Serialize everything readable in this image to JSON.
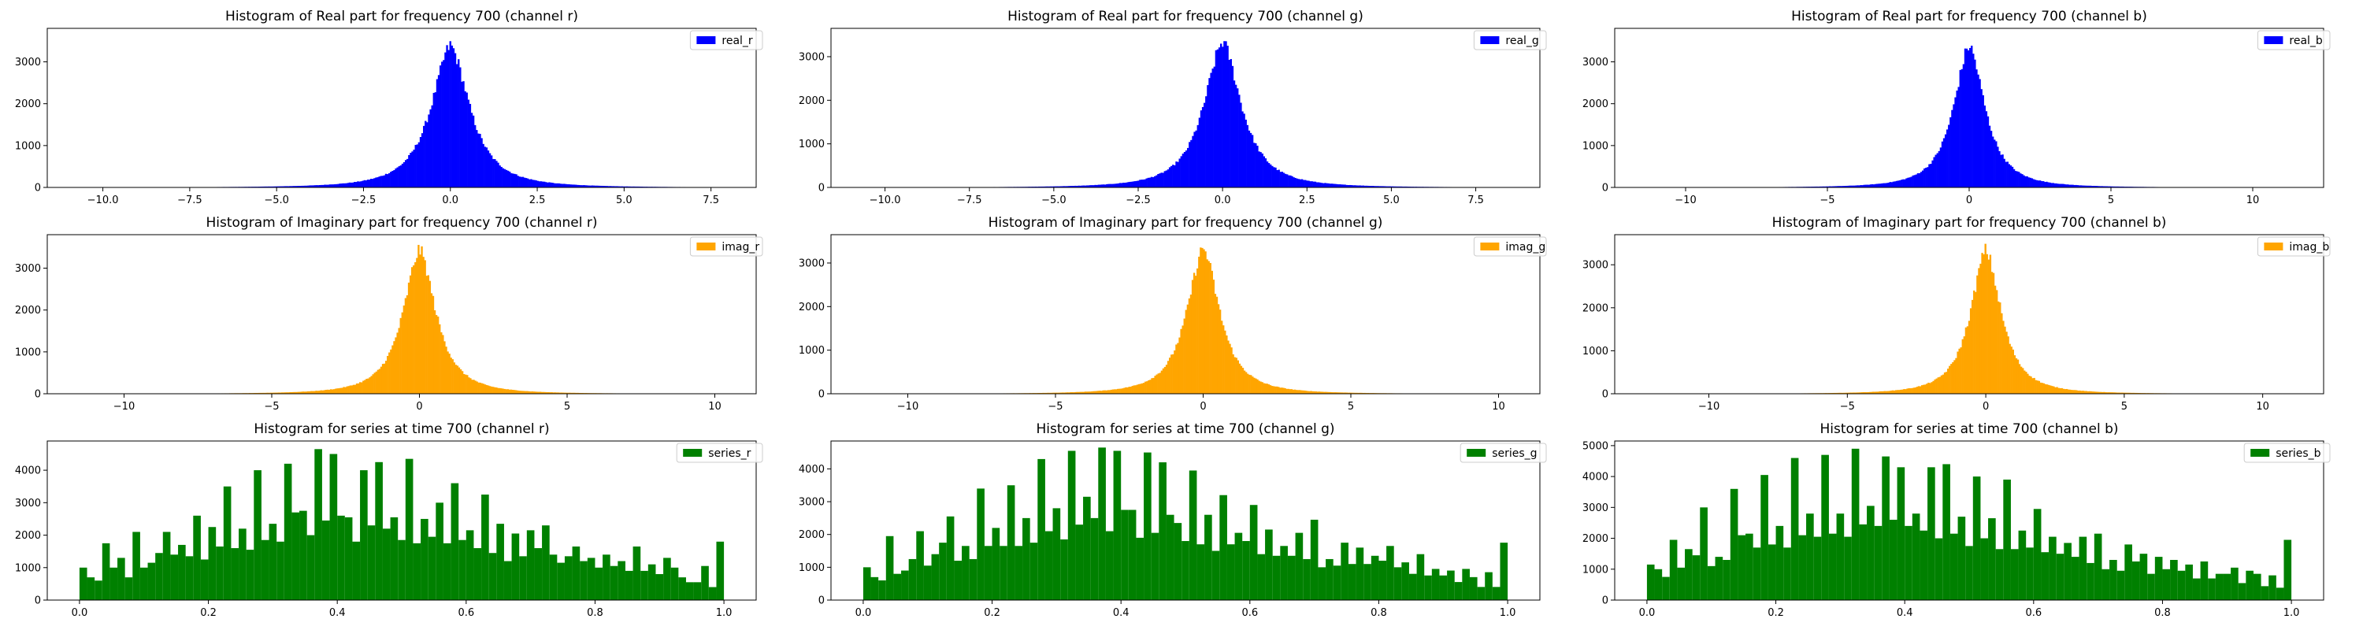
{
  "chart_data": [
    {
      "type": "bar",
      "title": "Histogram of Real part for frequency 700 (channel r)",
      "legend": "real_r",
      "color": "#0000ff",
      "xlim": [
        -11.6,
        8.8
      ],
      "ylim": [
        0,
        3800
      ],
      "xticks": [
        -10.0,
        -7.5,
        -5.0,
        -2.5,
        0.0,
        2.5,
        5.0,
        7.5
      ],
      "xtick_labels": [
        "−10.0",
        "−7.5",
        "−5.0",
        "−2.5",
        "0.0",
        "2.5",
        "5.0",
        "7.5"
      ],
      "yticks": [
        0,
        1000,
        2000,
        3000
      ],
      "distribution": {
        "kind": "peaked",
        "center": 0.0,
        "peak": 3400,
        "range": [
          -11,
          8
        ],
        "bins": 400,
        "noise": 0.05
      },
      "legend_position": "top-right"
    },
    {
      "type": "bar",
      "title": "Histogram of Real part for frequency 700 (channel g)",
      "legend": "real_g",
      "color": "#0000ff",
      "xlim": [
        -11.6,
        9.4
      ],
      "ylim": [
        0,
        3650
      ],
      "xticks": [
        -10.0,
        -7.5,
        -5.0,
        -2.5,
        0.0,
        2.5,
        5.0,
        7.5
      ],
      "xtick_labels": [
        "−10.0",
        "−7.5",
        "−5.0",
        "−2.5",
        "0.0",
        "2.5",
        "5.0",
        "7.5"
      ],
      "yticks": [
        0,
        1000,
        2000,
        3000
      ],
      "distribution": {
        "kind": "peaked",
        "center": 0.0,
        "peak": 3350,
        "range": [
          -11,
          8.6
        ],
        "bins": 400,
        "noise": 0.05
      },
      "legend_position": "top-right"
    },
    {
      "type": "bar",
      "title": "Histogram of Real part for frequency 700 (channel b)",
      "legend": "real_b",
      "color": "#0000ff",
      "xlim": [
        -12.5,
        12.5
      ],
      "ylim": [
        0,
        3800
      ],
      "xticks": [
        -10,
        -5,
        0,
        5,
        10
      ],
      "xtick_labels": [
        "−10",
        "−5",
        "0",
        "5",
        "10"
      ],
      "yticks": [
        0,
        1000,
        2000,
        3000
      ],
      "distribution": {
        "kind": "peaked",
        "center": 0.0,
        "peak": 3400,
        "range": [
          -11.5,
          11.5
        ],
        "bins": 400,
        "noise": 0.05
      },
      "legend_position": "top-right"
    },
    {
      "type": "bar",
      "title": "Histogram of Imaginary part for frequency 700 (channel r)",
      "legend": "imag_r",
      "color": "#ffa500",
      "xlim": [
        -12.6,
        11.4
      ],
      "ylim": [
        0,
        3800
      ],
      "xticks": [
        -10,
        -5,
        0,
        5,
        10
      ],
      "xtick_labels": [
        "−10",
        "−5",
        "0",
        "5",
        "10"
      ],
      "yticks": [
        0,
        1000,
        2000,
        3000
      ],
      "distribution": {
        "kind": "peaked",
        "center": 0.0,
        "peak": 3450,
        "range": [
          -11.5,
          10.5
        ],
        "bins": 400,
        "noise": 0.05
      },
      "legend_position": "top-right"
    },
    {
      "type": "bar",
      "title": "Histogram of Imaginary part for frequency 700 (channel g)",
      "legend": "imag_g",
      "color": "#ffa500",
      "xlim": [
        -12.6,
        11.4
      ],
      "ylim": [
        0,
        3650
      ],
      "xticks": [
        -10,
        -5,
        0,
        5,
        10
      ],
      "xtick_labels": [
        "−10",
        "−5",
        "0",
        "5",
        "10"
      ],
      "yticks": [
        0,
        1000,
        2000,
        3000
      ],
      "distribution": {
        "kind": "peaked",
        "center": 0.0,
        "peak": 3350,
        "range": [
          -11.5,
          10.5
        ],
        "bins": 400,
        "noise": 0.05
      },
      "legend_position": "top-right"
    },
    {
      "type": "bar",
      "title": "Histogram of Imaginary part for frequency 700 (channel b)",
      "legend": "imag_b",
      "color": "#ffa500",
      "xlim": [
        -13.4,
        12.2
      ],
      "ylim": [
        0,
        3700
      ],
      "xticks": [
        -10,
        -5,
        0,
        5,
        10
      ],
      "xtick_labels": [
        "−10",
        "−5",
        "0",
        "5",
        "10"
      ],
      "yticks": [
        0,
        1000,
        2000,
        3000
      ],
      "distribution": {
        "kind": "peaked",
        "center": 0.0,
        "peak": 3350,
        "range": [
          -12.5,
          11
        ],
        "bins": 400,
        "noise": 0.05
      },
      "legend_position": "top-right"
    },
    {
      "type": "bar",
      "title": "Histogram for series at time 700 (channel r)",
      "legend": "series_r",
      "color": "#008000",
      "xlim": [
        -0.05,
        1.05
      ],
      "ylim": [
        0,
        4900
      ],
      "xticks": [
        0.0,
        0.2,
        0.4,
        0.6,
        0.8,
        1.0
      ],
      "xtick_labels": [
        "0.0",
        "0.2",
        "0.4",
        "0.6",
        "0.8",
        "1.0"
      ],
      "yticks": [
        0,
        1000,
        2000,
        3000,
        4000
      ],
      "bin_range": [
        0,
        1
      ],
      "values": [
        1000,
        700,
        600,
        1750,
        1000,
        1300,
        700,
        2100,
        1000,
        1150,
        1450,
        2100,
        1400,
        1700,
        1350,
        2600,
        1250,
        2250,
        1650,
        3500,
        1600,
        2200,
        1550,
        4000,
        1850,
        2350,
        1800,
        4200,
        2700,
        2750,
        2000,
        4650,
        2450,
        4500,
        2600,
        2550,
        1800,
        4000,
        2300,
        4250,
        2200,
        2550,
        1850,
        4350,
        1750,
        2500,
        1950,
        3000,
        1750,
        3600,
        1850,
        2150,
        1600,
        3250,
        1450,
        2350,
        1200,
        2050,
        1350,
        2150,
        1600,
        2300,
        1400,
        1150,
        1350,
        1650,
        1200,
        1300,
        1000,
        1400,
        1050,
        1200,
        900,
        1650,
        900,
        1100,
        800,
        1300,
        1000,
        700,
        550,
        550,
        1050,
        400,
        1800
      ]
    },
    {
      "type": "bar",
      "title": "Histogram for series at time 700 (channel g)",
      "legend": "series_g",
      "color": "#008000",
      "xlim": [
        -0.05,
        1.05
      ],
      "ylim": [
        0,
        4850
      ],
      "xticks": [
        0.0,
        0.2,
        0.4,
        0.6,
        0.8,
        1.0
      ],
      "xtick_labels": [
        "0.0",
        "0.2",
        "0.4",
        "0.6",
        "0.8",
        "1.0"
      ],
      "yticks": [
        0,
        1000,
        2000,
        3000,
        4000
      ],
      "bin_range": [
        0,
        1
      ],
      "values": [
        1000,
        700,
        600,
        1950,
        800,
        900,
        1250,
        2100,
        1050,
        1400,
        1750,
        2550,
        1200,
        1650,
        1250,
        3400,
        1650,
        2200,
        1650,
        3500,
        1650,
        2500,
        1750,
        4300,
        2100,
        2800,
        1850,
        4550,
        2300,
        3150,
        2500,
        4650,
        2100,
        4550,
        2750,
        2750,
        1900,
        4500,
        2050,
        4200,
        2600,
        2350,
        1800,
        3950,
        1700,
        2600,
        1500,
        3200,
        1700,
        2050,
        1800,
        2900,
        1400,
        2150,
        1350,
        1650,
        1350,
        2050,
        1250,
        2450,
        1000,
        1250,
        1050,
        1750,
        1100,
        1600,
        1100,
        1350,
        1200,
        1650,
        1000,
        1150,
        800,
        1400,
        750,
        950,
        750,
        900,
        550,
        950,
        700,
        400,
        850,
        400,
        1750
      ]
    },
    {
      "type": "bar",
      "title": "Histogram for series at time 700 (channel b)",
      "legend": "series_b",
      "color": "#008000",
      "xlim": [
        -0.05,
        1.05
      ],
      "ylim": [
        0,
        5150
      ],
      "xticks": [
        0.0,
        0.2,
        0.4,
        0.6,
        0.8,
        1.0
      ],
      "xtick_labels": [
        "0.0",
        "0.2",
        "0.4",
        "0.6",
        "0.8",
        "1.0"
      ],
      "yticks": [
        0,
        1000,
        2000,
        3000,
        4000,
        5000
      ],
      "bin_range": [
        0,
        1
      ],
      "values": [
        1150,
        1000,
        750,
        1950,
        1050,
        1650,
        1450,
        3000,
        1100,
        1400,
        1300,
        3600,
        2100,
        2150,
        1700,
        4050,
        1800,
        2400,
        1700,
        4600,
        2100,
        2800,
        2050,
        4700,
        2150,
        2800,
        2050,
        4900,
        2450,
        3050,
        2400,
        4650,
        2600,
        4300,
        2400,
        2800,
        2250,
        4300,
        2000,
        4400,
        2150,
        2700,
        1750,
        4000,
        2000,
        2650,
        1650,
        3900,
        1650,
        2250,
        1700,
        2950,
        1550,
        2050,
        1500,
        1850,
        1400,
        2050,
        1200,
        2150,
        1000,
        1300,
        950,
        1800,
        1250,
        1500,
        850,
        1400,
        1000,
        1300,
        950,
        1150,
        700,
        1250,
        700,
        850,
        850,
        1050,
        550,
        950,
        850,
        450,
        800,
        400,
        1950
      ]
    }
  ]
}
